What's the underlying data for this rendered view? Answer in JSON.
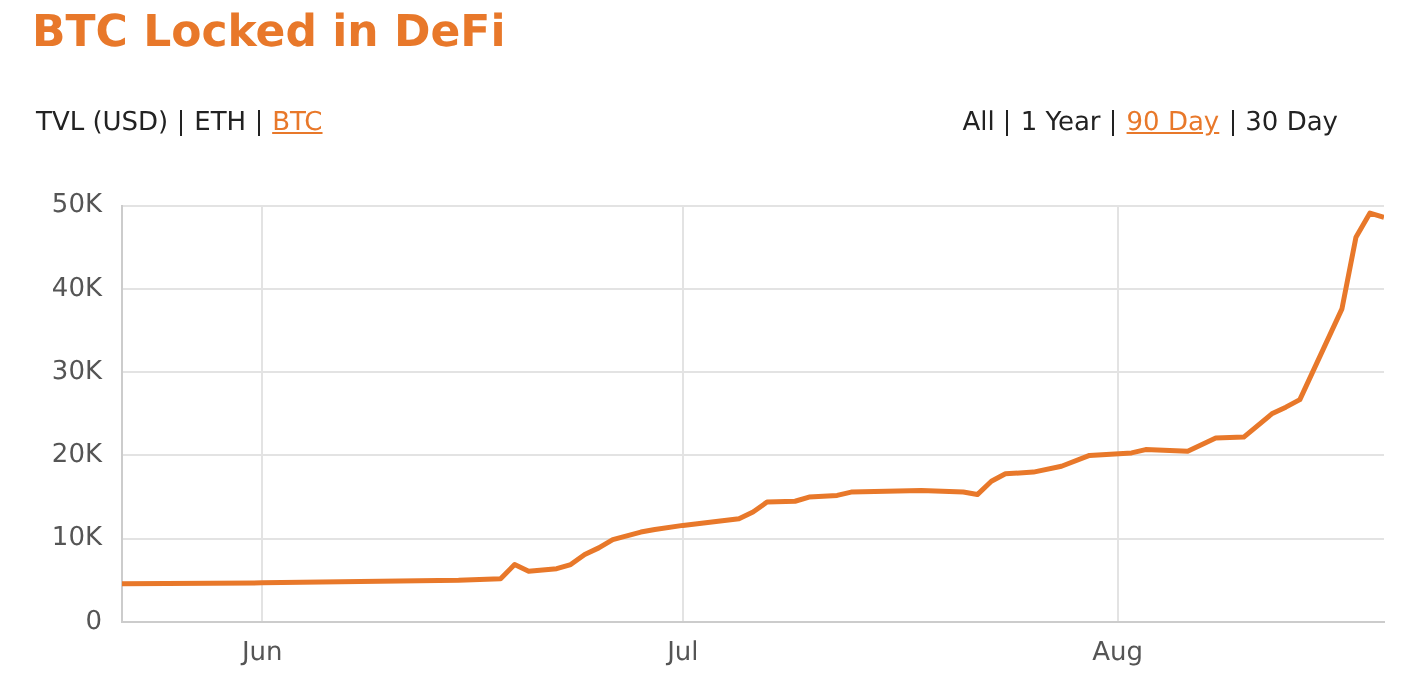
{
  "chart_data": {
    "type": "line",
    "title": "BTC Locked in DeFi",
    "annotations": [
      "TVL (USD)",
      "ETH",
      "BTC",
      "All",
      "1 Year",
      "90 Day",
      "30 Day"
    ],
    "x": [
      "--05-22",
      "--06-01",
      "--06-15",
      "--06-18",
      "--06-19",
      "--06-20",
      "--06-22",
      "--06-23",
      "--06-24",
      "--06-25",
      "--06-26",
      "--06-28",
      "--06-29",
      "--07-01",
      "--07-05",
      "--07-06",
      "--07-07",
      "--07-09",
      "--07-10",
      "--07-12",
      "--07-13",
      "--07-18",
      "--07-21",
      "--07-22",
      "--07-23",
      "--07-24",
      "--07-26",
      "--07-28",
      "--07-30",
      "--08-02",
      "--08-03",
      "--08-06",
      "--08-08",
      "--08-10",
      "--08-12",
      "--08-13",
      "--08-14",
      "--08-17",
      "--08-18",
      "--08-19",
      "--08-20"
    ],
    "series": [
      {
        "color": "#e8782a",
        "values": [
          4600,
          4700,
          5000,
          5200,
          6900,
          6100,
          6400,
          6900,
          8100,
          8900,
          9900,
          10800,
          11100,
          11600,
          12400,
          13200,
          14400,
          14500,
          15000,
          15200,
          15600,
          15800,
          15600,
          15300,
          16900,
          17800,
          18000,
          18700,
          20000,
          20300,
          20700,
          20500,
          22100,
          22200,
          25000,
          25800,
          26700,
          37600,
          46200,
          49100,
          48600
        ]
      }
    ],
    "xlim": [
      "--05-22",
      "--08-20"
    ],
    "xticks": [
      {
        "value": "--06-01",
        "label": "Jun"
      },
      {
        "value": "--07-01",
        "label": "Jul"
      },
      {
        "value": "--08-01",
        "label": "Aug"
      }
    ],
    "ylim": [
      0,
      50000
    ],
    "yticks": [
      0,
      {
        "value": 10000,
        "label": "10K"
      },
      {
        "value": 20000,
        "label": "20K"
      },
      {
        "value": 30000,
        "label": "30K"
      },
      {
        "value": 40000,
        "label": "40K"
      },
      {
        "value": 50000,
        "label": "50K"
      }
    ],
    "grid": true,
    "legend": false,
    "marker": "none",
    "line_style": "solid"
  }
}
